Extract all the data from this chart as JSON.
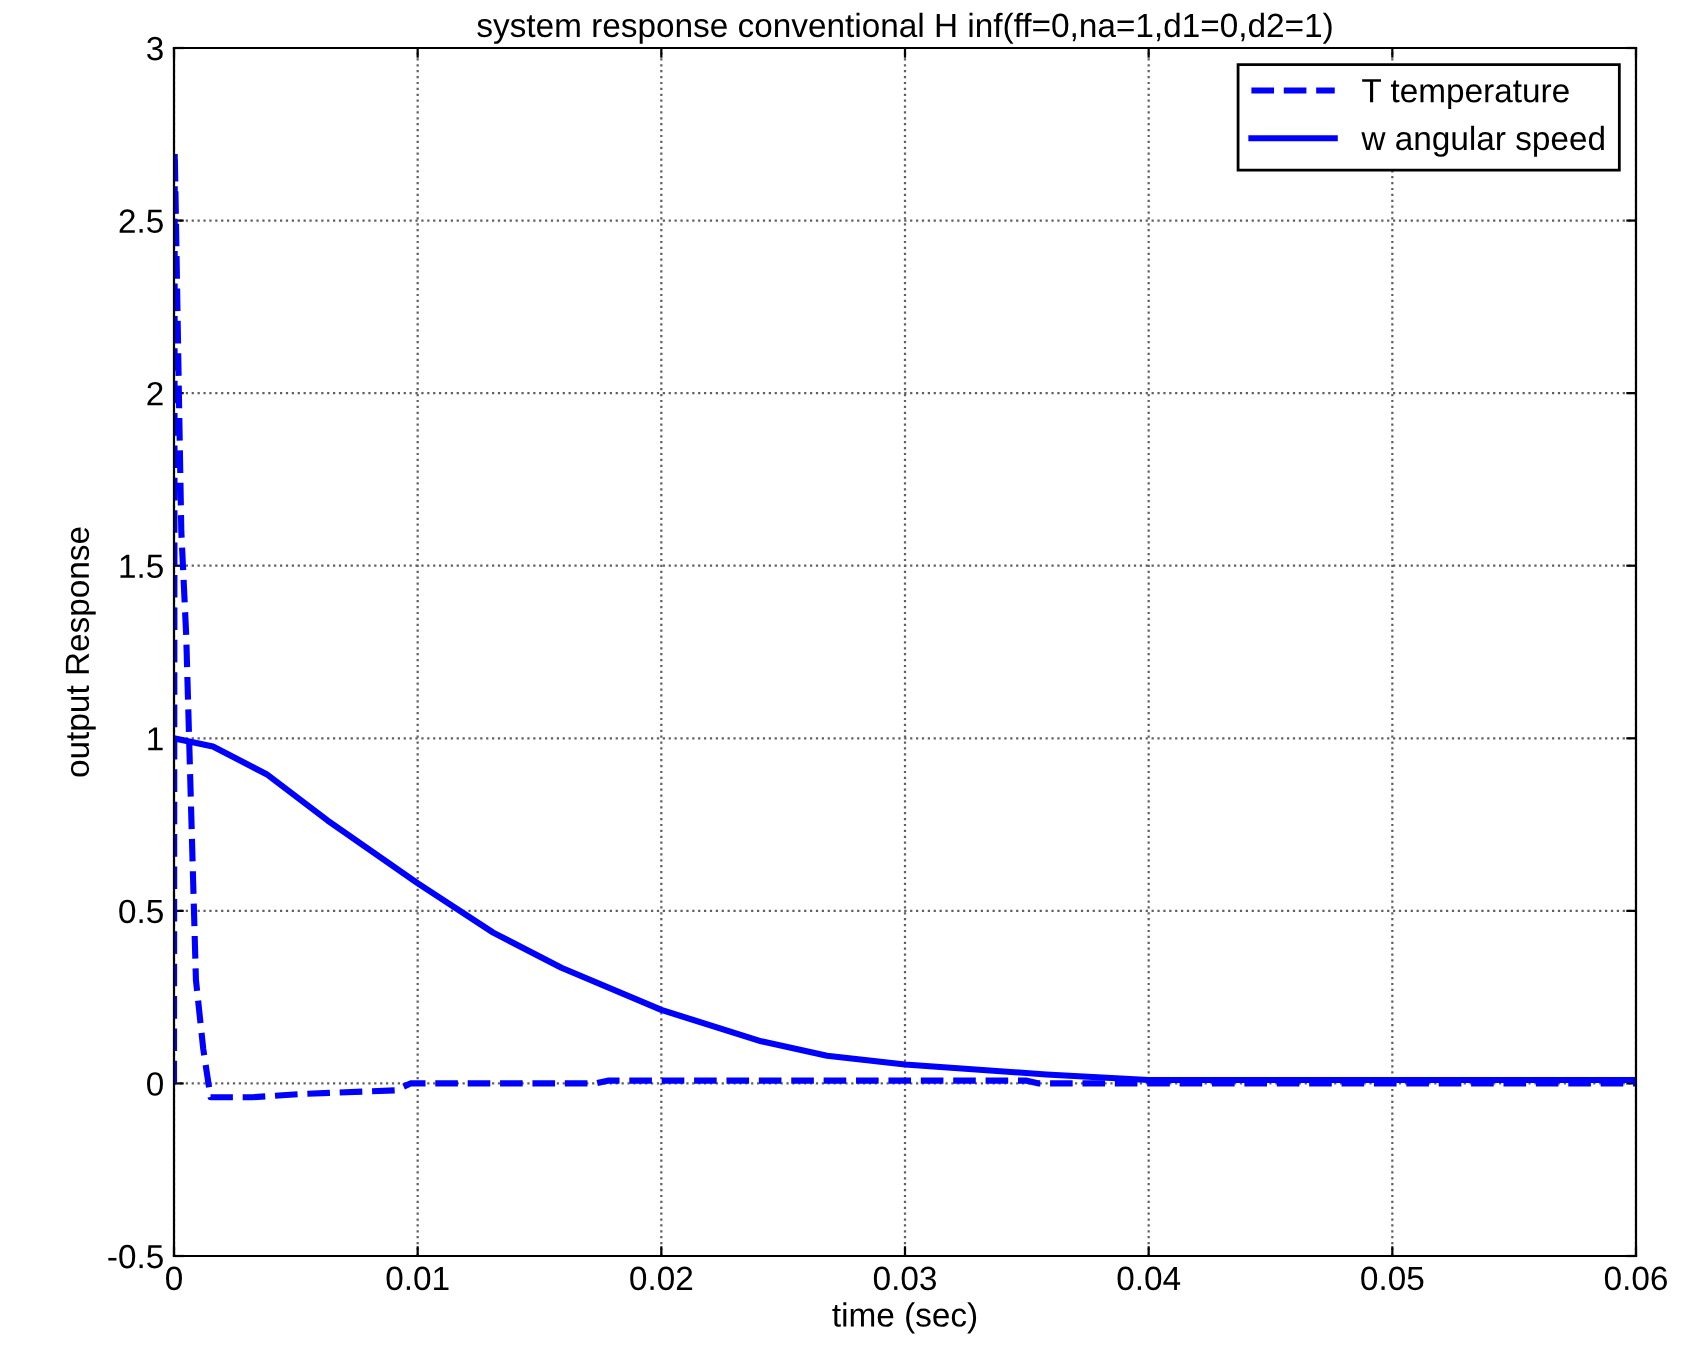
{
  "chart_data": {
    "type": "line",
    "title": "system response conventional H inf(ff=0,na=1,d1=0,d2=1)",
    "xlabel": "time (sec)",
    "ylabel": "output Response",
    "series": [
      {
        "name": "T temperature",
        "color": "#0000ff",
        "line_style": "dashed",
        "x": [
          0,
          3e-05,
          8e-05,
          0.0002,
          0.0003,
          0.0005,
          0.0007,
          0.0009,
          0.0012,
          0.0015,
          0.0032,
          0.0054,
          0.0091,
          0.0097,
          0.0173,
          0.0178,
          0.035,
          0.0355,
          0.06
        ],
        "values": [
          0,
          2.7,
          2.5,
          2.0,
          1.6,
          1.3,
          0.8,
          0.3,
          0.1,
          -0.04,
          -0.04,
          -0.03,
          -0.02,
          0,
          0,
          0.008,
          0.008,
          0,
          0
        ]
      },
      {
        "name": "w angular speed",
        "color": "#0000ff",
        "line_style": "solid",
        "x": [
          0,
          0.0016,
          0.0038,
          0.0063,
          0.01,
          0.0131,
          0.0159,
          0.02,
          0.0241,
          0.0268,
          0.03,
          0.0358,
          0.04,
          0.06
        ],
        "values": [
          1.0,
          0.976,
          0.896,
          0.762,
          0.58,
          0.437,
          0.335,
          0.213,
          0.122,
          0.08,
          0.055,
          0.026,
          0.01,
          0.01
        ]
      }
    ],
    "xlim": [
      0,
      0.06
    ],
    "xticks": [
      0,
      0.01,
      0.02,
      0.03,
      0.04,
      0.05,
      0.06
    ],
    "ylim": [
      -0.5,
      3
    ],
    "yticks": [
      -0.5,
      0,
      0.5,
      1,
      1.5,
      2,
      2.5,
      3
    ],
    "grid": true,
    "legend": "top right"
  }
}
